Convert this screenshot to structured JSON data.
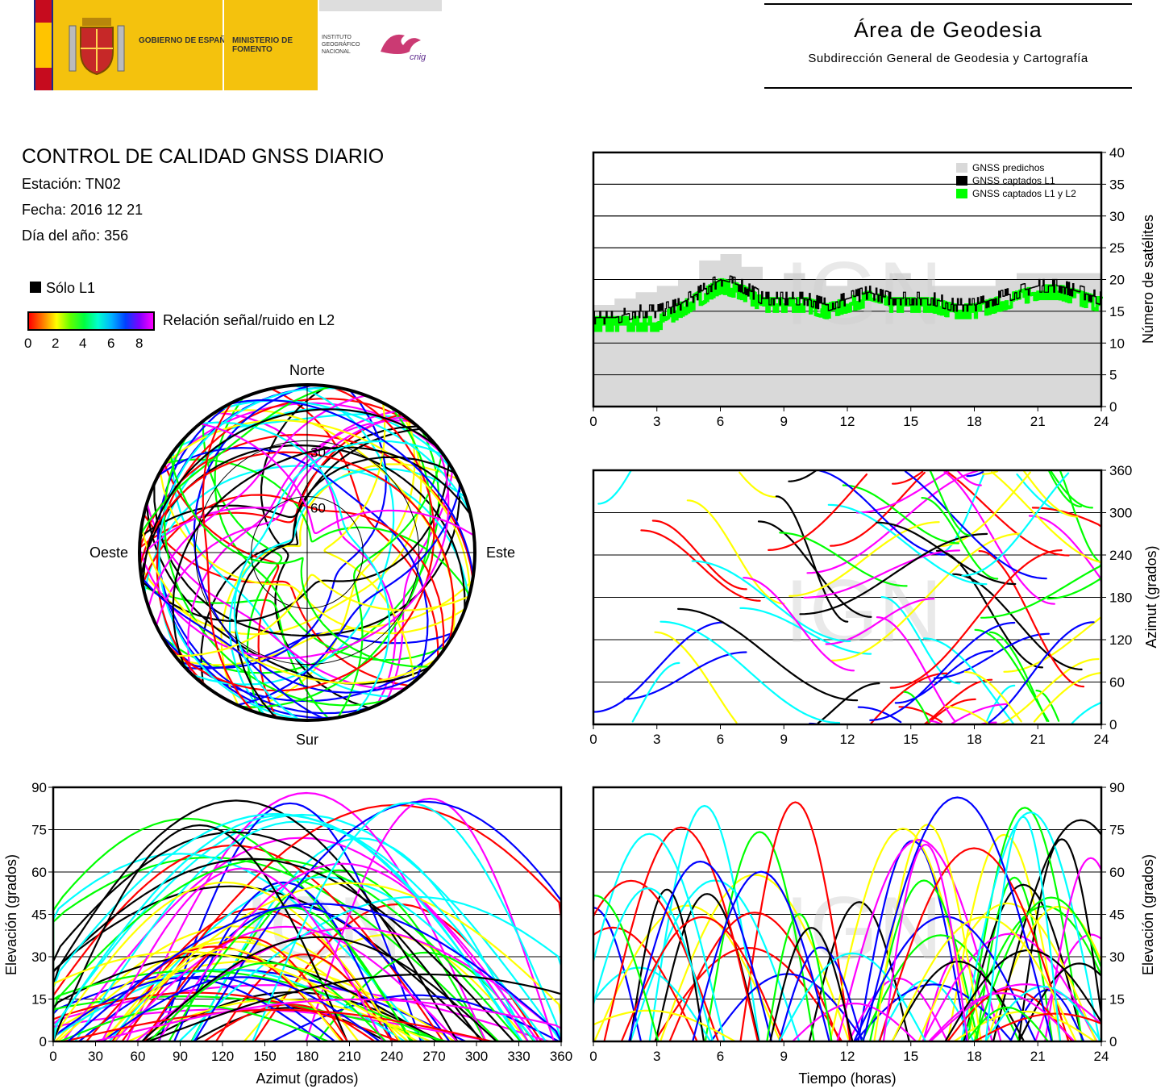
{
  "header": {
    "logo_gobierno": "GOBIERNO DE ESPAÑA",
    "logo_ministerio": "MINISTERIO DE FOMENTO",
    "logo_instituto": "INSTITUTO GEOGRÁFICO NACIONAL",
    "logo_cnig": "cnig",
    "area_title": "Área de Geodesia",
    "area_subtitle": "Subdirección General de Geodesia y Cartografía"
  },
  "info": {
    "title": "CONTROL DE CALIDAD GNSS DIARIO",
    "station": "Estación: TN02",
    "date": "Fecha: 2016 12 21",
    "doy": "Día del año: 356",
    "legend_l1": "Sólo L1",
    "colorbar_label": "Relación señal/ruido en L2",
    "colorbar_ticks": [
      "0",
      "2",
      "4",
      "6",
      "8"
    ]
  },
  "colors": {
    "predicted": "#d9d9d9",
    "l1": "#000000",
    "l1l2": "#00ff00",
    "snr_scale": [
      "#ff0000",
      "#ffff00",
      "#00ff00",
      "#00ffff",
      "#0000ff",
      "#ff00ff"
    ]
  },
  "watermark": "IGN",
  "chart_data": [
    {
      "type": "area",
      "id": "satellite-count",
      "xlim": [
        0,
        24
      ],
      "ylim": [
        0,
        40
      ],
      "xticks": [
        "0",
        "3",
        "6",
        "9",
        "12",
        "15",
        "18",
        "21",
        "24"
      ],
      "yticks": [
        "0",
        "5",
        "10",
        "15",
        "20",
        "25",
        "30",
        "35",
        "40"
      ],
      "ylabel": "Número de satélites",
      "grid": true,
      "legend_position": "top-right",
      "x": [
        0,
        1,
        2,
        3,
        4,
        5,
        6,
        7,
        8,
        9,
        10,
        11,
        12,
        13,
        14,
        15,
        16,
        17,
        18,
        19,
        20,
        21,
        22,
        23,
        24
      ],
      "series": [
        {
          "name": "GNSS predichos",
          "values": [
            16,
            17,
            18,
            19,
            20,
            23,
            24,
            22,
            20,
            21,
            20,
            19,
            20,
            20,
            21,
            20,
            19,
            19,
            19,
            20,
            21,
            21,
            21,
            21,
            20
          ]
        },
        {
          "name": "GNSS captados L1",
          "values": [
            14,
            14,
            15,
            15,
            16,
            18,
            20,
            19,
            17,
            17,
            17,
            16,
            17,
            18,
            17,
            17,
            17,
            16,
            16,
            17,
            18,
            19,
            19,
            18,
            17
          ]
        },
        {
          "name": "GNSS captados L1 y L2",
          "values": [
            13,
            13,
            13,
            13,
            15,
            17,
            19,
            18,
            16,
            16,
            16,
            15,
            16,
            17,
            16,
            16,
            16,
            15,
            15,
            16,
            17,
            18,
            18,
            17,
            16
          ]
        }
      ]
    },
    {
      "type": "scatter",
      "id": "azimuth-vs-time",
      "xlim": [
        0,
        24
      ],
      "ylim": [
        0,
        360
      ],
      "xticks": [
        "0",
        "3",
        "6",
        "9",
        "12",
        "15",
        "18",
        "21",
        "24"
      ],
      "yticks": [
        "0",
        "60",
        "120",
        "180",
        "240",
        "300",
        "360"
      ],
      "ylabel": "Azimut (grados)",
      "grid": true
    },
    {
      "type": "scatter",
      "id": "elevation-vs-azimuth",
      "xlim": [
        0,
        360
      ],
      "ylim": [
        0,
        90
      ],
      "xticks": [
        "0",
        "30",
        "60",
        "90",
        "120",
        "150",
        "180",
        "210",
        "240",
        "270",
        "300",
        "330",
        "360"
      ],
      "yticks": [
        "0",
        "15",
        "30",
        "45",
        "60",
        "75",
        "90"
      ],
      "xlabel": "Azimut (grados)",
      "ylabel": "Elevación (grados)",
      "grid": true
    },
    {
      "type": "scatter",
      "id": "elevation-vs-time",
      "xlim": [
        0,
        24
      ],
      "ylim": [
        0,
        90
      ],
      "xticks": [
        "0",
        "3",
        "6",
        "9",
        "12",
        "15",
        "18",
        "21",
        "24"
      ],
      "yticks": [
        "0",
        "15",
        "30",
        "45",
        "60",
        "75",
        "90"
      ],
      "xlabel": "Tiempo (horas)",
      "ylabel": "Elevación (grados)",
      "grid": true
    },
    {
      "type": "scatter",
      "id": "skyplot",
      "polar": true,
      "rings": [
        "30",
        "60"
      ],
      "directions": {
        "north": "Norte",
        "south": "Sur",
        "west": "Oeste",
        "east": "Este"
      }
    }
  ]
}
